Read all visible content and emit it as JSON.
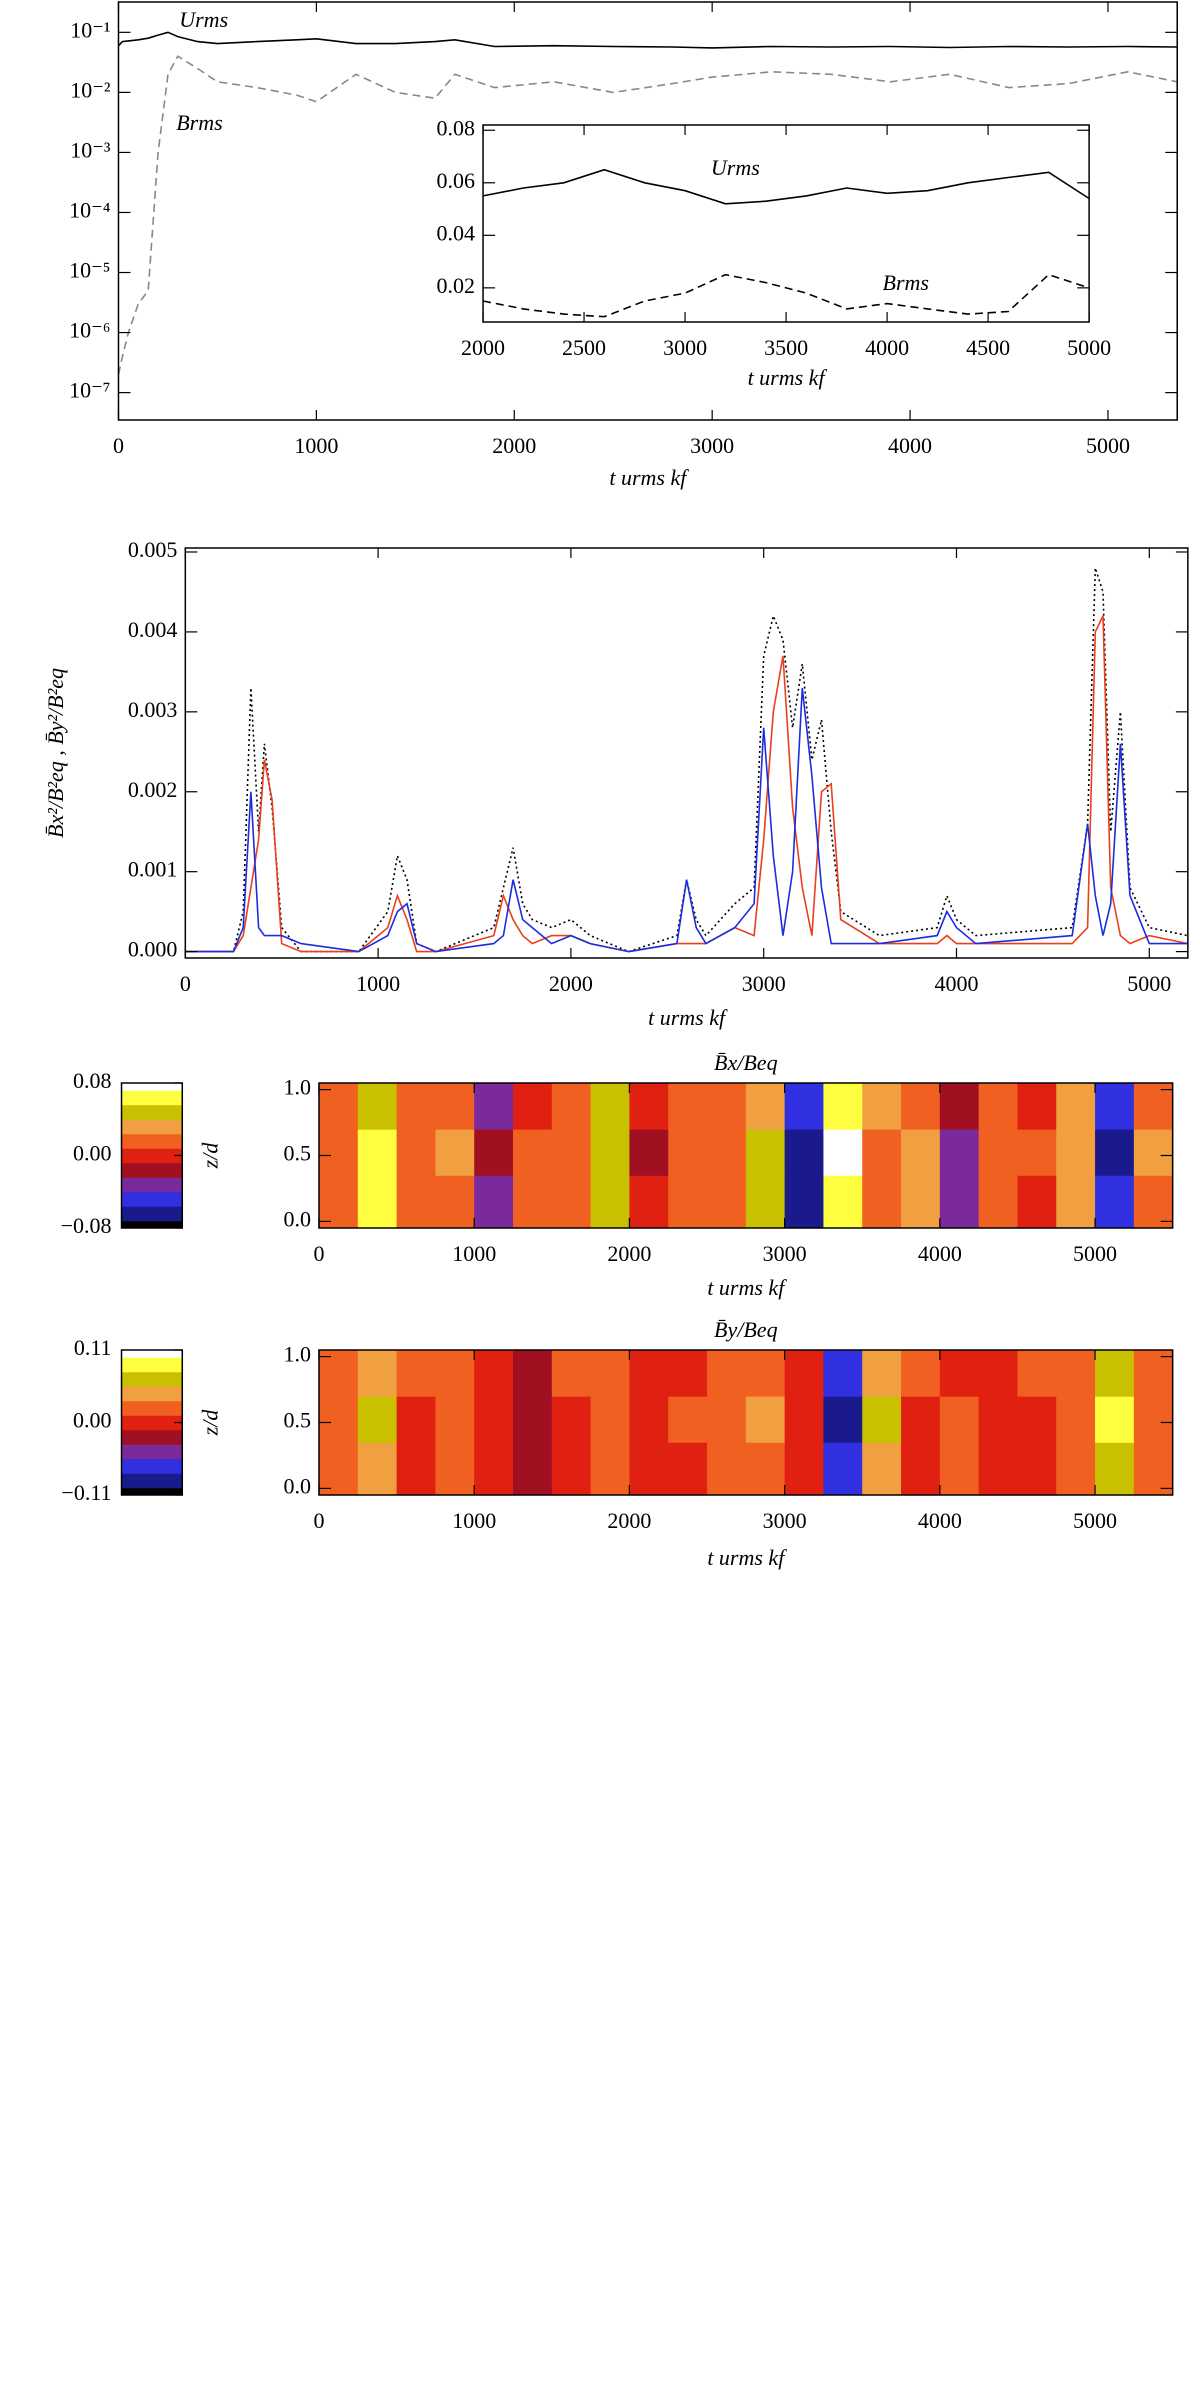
{
  "chart_data": [
    {
      "type": "line",
      "log_y": true,
      "xlabel": "t urms kf",
      "annotations": [
        "Urms",
        "Brms"
      ],
      "x": [
        0,
        20,
        50,
        100,
        150,
        200,
        250,
        300,
        400,
        500,
        700,
        900,
        1000,
        1200,
        1400,
        1600,
        1700,
        1900,
        2200,
        2500,
        2800,
        3000,
        3300,
        3600,
        3900,
        4200,
        4500,
        4800,
        5100,
        5350
      ],
      "series": [
        {
          "color": "#000000",
          "style": "solid",
          "values": [
            0.06,
            0.07,
            0.072,
            0.075,
            0.08,
            0.09,
            0.1,
            0.085,
            0.07,
            0.065,
            0.07,
            0.075,
            0.078,
            0.065,
            0.065,
            0.07,
            0.075,
            0.058,
            0.06,
            0.058,
            0.057,
            0.055,
            0.058,
            0.057,
            0.058,
            0.056,
            0.058,
            0.057,
            0.058,
            0.057
          ]
        },
        {
          "color": "#888888",
          "style": "dashed",
          "values": [
            2e-07,
            4e-07,
            1e-06,
            3e-06,
            5e-06,
            0.001,
            0.02,
            0.04,
            0.025,
            0.015,
            0.012,
            0.009,
            0.007,
            0.02,
            0.01,
            0.008,
            0.02,
            0.012,
            0.015,
            0.01,
            0.014,
            0.018,
            0.022,
            0.02,
            0.015,
            0.02,
            0.012,
            0.014,
            0.022,
            0.015
          ]
        }
      ],
      "xlim": [
        0,
        5350
      ],
      "xticks": [
        0,
        1000,
        2000,
        3000,
        4000,
        5000
      ],
      "ylim": [
        3.5e-08,
        0.32
      ],
      "yticks": [
        {
          "value": 1e-07,
          "label": "10⁻⁷"
        },
        {
          "value": 1e-06,
          "label": "10⁻⁶"
        },
        {
          "value": 1e-05,
          "label": "10⁻⁵"
        },
        {
          "value": 0.0001,
          "label": "10⁻⁴"
        },
        {
          "value": 0.001,
          "label": "10⁻³"
        },
        {
          "value": 0.01,
          "label": "10⁻²"
        },
        {
          "value": 0.1,
          "label": "10⁻¹"
        }
      ]
    },
    {
      "type": "line",
      "xlabel": "t urms kf",
      "annotations": [
        "Urms",
        "Brms"
      ],
      "x": [
        2000,
        2200,
        2400,
        2600,
        2800,
        3000,
        3200,
        3400,
        3600,
        3800,
        4000,
        4200,
        4400,
        4600,
        4800,
        5000
      ],
      "series": [
        {
          "color": "#000000",
          "style": "solid",
          "values": [
            0.055,
            0.058,
            0.06,
            0.065,
            0.06,
            0.057,
            0.052,
            0.053,
            0.055,
            0.058,
            0.056,
            0.057,
            0.06,
            0.062,
            0.064,
            0.054
          ]
        },
        {
          "color": "#000000",
          "style": "dashed",
          "values": [
            0.015,
            0.012,
            0.01,
            0.009,
            0.015,
            0.018,
            0.025,
            0.022,
            0.018,
            0.012,
            0.014,
            0.012,
            0.01,
            0.011,
            0.025,
            0.02
          ]
        }
      ],
      "xlim": [
        2000,
        5000
      ],
      "xticks": [
        2000,
        2500,
        3000,
        3500,
        4000,
        4500,
        5000
      ],
      "ylim": [
        0.007,
        0.082
      ],
      "yticks": [
        {
          "value": 0.02,
          "label": "0.02"
        },
        {
          "value": 0.04,
          "label": "0.04"
        },
        {
          "value": 0.06,
          "label": "0.06"
        },
        {
          "value": 0.08,
          "label": "0.08"
        }
      ]
    },
    {
      "type": "line",
      "xlabel": "t urms kf",
      "ylabel": "B̄x²/B²eq , B̄y²/B²eq",
      "x": [
        0,
        250,
        300,
        340,
        380,
        410,
        450,
        500,
        600,
        900,
        1050,
        1100,
        1150,
        1200,
        1300,
        1600,
        1650,
        1700,
        1750,
        1800,
        1900,
        2000,
        2100,
        2300,
        2550,
        2600,
        2650,
        2700,
        2850,
        2950,
        3000,
        3050,
        3100,
        3150,
        3200,
        3250,
        3300,
        3350,
        3400,
        3600,
        3900,
        3950,
        4000,
        4100,
        4600,
        4680,
        4720,
        4760,
        4800,
        4850,
        4900,
        5000,
        5200
      ],
      "series": [
        {
          "color": "#000000",
          "style": "dotted",
          "values": [
            0,
            0,
            0.0005,
            0.0033,
            0.0015,
            0.0026,
            0.0018,
            0.0003,
            0,
            0,
            0.0005,
            0.0012,
            0.0009,
            0.0001,
            0,
            0.0003,
            0.0008,
            0.0013,
            0.0006,
            0.0004,
            0.0003,
            0.0004,
            0.0002,
            0,
            0.0002,
            0.0009,
            0.0004,
            0.0002,
            0.0006,
            0.0008,
            0.0037,
            0.0042,
            0.0039,
            0.0028,
            0.0036,
            0.0024,
            0.0029,
            0.0015,
            0.0005,
            0.0002,
            0.0003,
            0.0007,
            0.0004,
            0.0002,
            0.0003,
            0.0016,
            0.0048,
            0.0045,
            0.0015,
            0.003,
            0.0008,
            0.0003,
            0.0002
          ]
        },
        {
          "color": "#e8401c",
          "style": "solid",
          "values": [
            0,
            0,
            0.0002,
            0.0008,
            0.0014,
            0.0024,
            0.0019,
            0.0001,
            0,
            0,
            0.0003,
            0.0007,
            0.0004,
            0,
            0,
            0.0002,
            0.0007,
            0.0004,
            0.0002,
            0.0001,
            0.0002,
            0.0002,
            0.0001,
            0,
            0.0001,
            0.0001,
            0.0001,
            0.0001,
            0.0003,
            0.0002,
            0.0014,
            0.003,
            0.0037,
            0.0018,
            0.0008,
            0.0002,
            0.002,
            0.0021,
            0.0004,
            0.0001,
            0.0001,
            0.0002,
            0.0001,
            0.0001,
            0.0001,
            0.0003,
            0.004,
            0.0042,
            0.0008,
            0.0002,
            0.0001,
            0.0002,
            0.0001
          ]
        },
        {
          "color": "#1c2ce0",
          "style": "solid",
          "values": [
            0,
            0,
            0.0003,
            0.002,
            0.0003,
            0.0002,
            0.0002,
            0.0002,
            0.0001,
            0,
            0.0002,
            0.0005,
            0.0006,
            0.0001,
            0,
            0.0001,
            0.0002,
            0.0009,
            0.0004,
            0.0003,
            0.0001,
            0.0002,
            0.0001,
            0,
            0.0001,
            0.0009,
            0.0003,
            0.0001,
            0.0003,
            0.0006,
            0.0028,
            0.0012,
            0.0002,
            0.001,
            0.0033,
            0.0022,
            0.0008,
            0.0001,
            0.0001,
            0.0001,
            0.0002,
            0.0005,
            0.0003,
            0.0001,
            0.0002,
            0.0016,
            0.0007,
            0.0002,
            0.0006,
            0.0026,
            0.0007,
            0.0001,
            0.0001
          ]
        }
      ],
      "xlim": [
        0,
        5200
      ],
      "xticks": [
        0,
        1000,
        2000,
        3000,
        4000,
        5000
      ],
      "ylim": [
        -8e-05,
        0.00505
      ],
      "yticks": [
        {
          "value": 0,
          "label": "0.000"
        },
        {
          "value": 0.001,
          "label": "0.001"
        },
        {
          "value": 0.002,
          "label": "0.002"
        },
        {
          "value": 0.003,
          "label": "0.003"
        },
        {
          "value": 0.004,
          "label": "0.004"
        },
        {
          "value": 0.005,
          "label": "0.005"
        }
      ]
    },
    {
      "type": "heatmap",
      "title": "B̄x/Beq",
      "xlabel": "t urms kf",
      "ylabel": "z/d",
      "bins": [
        0,
        250,
        500,
        750,
        1000,
        1250,
        1500,
        1750,
        2000,
        2250,
        2500,
        2750,
        3000,
        3250,
        3500,
        3750,
        4000,
        4250,
        4500,
        4750,
        5000,
        5250,
        5500
      ],
      "z": [
        -0.05,
        0.35,
        0.7,
        1.05
      ],
      "values": [
        [
          0.02,
          0.06,
          0.01,
          0.02,
          -0.03,
          0.01,
          0.02,
          0.04,
          0.0,
          0.02,
          0.01,
          0.04,
          -0.06,
          0.07,
          0.02,
          0.03,
          -0.03,
          0.02,
          0.0,
          0.03,
          -0.05,
          0.02
        ],
        [
          0.02,
          0.07,
          0.01,
          0.03,
          -0.02,
          0.01,
          0.02,
          0.045,
          -0.01,
          0.02,
          0.02,
          0.045,
          -0.07,
          0.075,
          0.02,
          0.03,
          -0.03,
          0.02,
          0.01,
          0.035,
          -0.065,
          0.025
        ],
        [
          0.015,
          0.05,
          0.02,
          0.02,
          -0.03,
          0.0,
          0.02,
          0.04,
          0.0,
          0.02,
          0.01,
          0.035,
          -0.05,
          0.06,
          0.03,
          0.02,
          -0.02,
          0.02,
          0.0,
          0.03,
          -0.05,
          0.02
        ]
      ],
      "colormap": [
        "#000000",
        "#1a1a8c",
        "#3030e0",
        "#7a2a9a",
        "#a01020",
        "#e02010",
        "#f06020",
        "#f0a040",
        "#c8c000",
        "#ffff40",
        "#ffffff"
      ],
      "clim": [
        -0.08,
        0.08
      ],
      "cticks": [
        {
          "value": -0.08,
          "label": "−0.08"
        },
        {
          "value": 0,
          "label": "0.00"
        },
        {
          "value": 0.08,
          "label": "0.08"
        }
      ],
      "xlim": [
        0,
        5500
      ],
      "xticks": [
        0,
        1000,
        2000,
        3000,
        4000,
        5000
      ],
      "ylim": [
        -0.05,
        1.05
      ],
      "yticks": [
        {
          "value": 0,
          "label": "0.0"
        },
        {
          "value": 0.5,
          "label": "0.5"
        },
        {
          "value": 1,
          "label": "1.0"
        }
      ]
    },
    {
      "type": "heatmap",
      "title": "B̄y/Beq",
      "xlabel": "t urms kf",
      "ylabel": "z/d",
      "bins": [
        0,
        250,
        500,
        750,
        1000,
        1250,
        1500,
        1750,
        2000,
        2250,
        2500,
        2750,
        3000,
        3250,
        3500,
        3750,
        4000,
        4250,
        4500,
        4750,
        5000,
        5250,
        5500
      ],
      "z": [
        -0.05,
        0.35,
        0.7,
        1.05
      ],
      "values": [
        [
          0.02,
          0.05,
          0.01,
          0.02,
          0.0,
          -0.02,
          0.01,
          0.02,
          -0.01,
          0.01,
          0.02,
          0.03,
          0.0,
          -0.07,
          0.05,
          0.01,
          0.02,
          0.0,
          0.01,
          0.03,
          0.07,
          0.02
        ],
        [
          0.02,
          0.06,
          0.01,
          0.03,
          0.01,
          -0.03,
          0.01,
          0.02,
          -0.01,
          0.02,
          0.02,
          0.035,
          0.01,
          -0.08,
          0.06,
          0.01,
          0.02,
          -0.01,
          0.01,
          0.03,
          0.08,
          0.02
        ],
        [
          0.03,
          0.045,
          0.02,
          0.02,
          0.0,
          -0.02,
          0.02,
          0.02,
          0.0,
          0.01,
          0.02,
          0.03,
          0.0,
          -0.06,
          0.05,
          0.02,
          0.01,
          0.0,
          0.02,
          0.025,
          0.06,
          0.03
        ]
      ],
      "colormap": [
        "#000000",
        "#1a1a8c",
        "#3030e0",
        "#7a2a9a",
        "#a01020",
        "#e02010",
        "#f06020",
        "#f0a040",
        "#c8c000",
        "#ffff40",
        "#ffffff"
      ],
      "clim": [
        -0.11,
        0.11
      ],
      "cticks": [
        {
          "value": -0.11,
          "label": "−0.11"
        },
        {
          "value": 0,
          "label": "0.00"
        },
        {
          "value": 0.11,
          "label": "0.11"
        }
      ],
      "xlim": [
        0,
        5500
      ],
      "xticks": [
        0,
        1000,
        2000,
        3000,
        4000,
        5000
      ],
      "ylim": [
        -0.05,
        1.05
      ],
      "yticks": [
        {
          "value": 0,
          "label": "0.0"
        },
        {
          "value": 0.5,
          "label": "0.5"
        },
        {
          "value": 1,
          "label": "1.0"
        }
      ]
    }
  ]
}
